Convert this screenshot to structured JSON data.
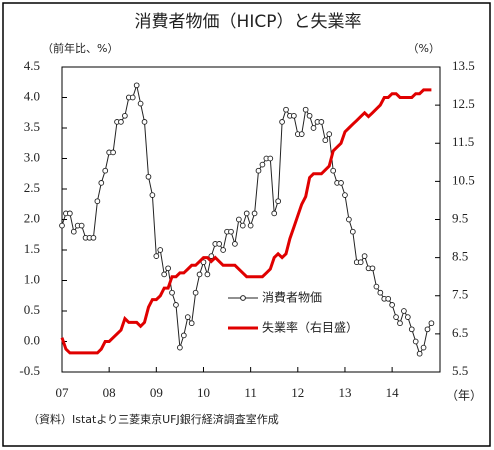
{
  "chart_data": {
    "type": "line",
    "title": "消費者物価（HICP）と失業率",
    "ylabel": "（前年比、%）",
    "y2label": "（%）",
    "xlabel": "（年）",
    "source": "（資料）Istatより三菱東京UFJ銀行経済調査室作成",
    "categories": [
      "07",
      null,
      null,
      null,
      null,
      null,
      null,
      null,
      null,
      null,
      null,
      null,
      "08",
      null,
      null,
      null,
      null,
      null,
      null,
      null,
      null,
      null,
      null,
      null,
      "09",
      null,
      null,
      null,
      null,
      null,
      null,
      null,
      null,
      null,
      null,
      null,
      "10",
      null,
      null,
      null,
      null,
      null,
      null,
      null,
      null,
      null,
      null,
      null,
      "11",
      null,
      null,
      null,
      null,
      null,
      null,
      null,
      null,
      null,
      null,
      null,
      "12",
      null,
      null,
      null,
      null,
      null,
      null,
      null,
      null,
      null,
      null,
      null,
      "13",
      null,
      null,
      null,
      null,
      null,
      null,
      null,
      null,
      null,
      null,
      null,
      "14",
      null,
      null,
      null,
      null,
      null,
      null,
      null,
      null,
      null,
      null
    ],
    "ylim": [
      -0.5,
      4.5
    ],
    "yticks": [
      -0.5,
      {
        "value": 0,
        "label": "0.0"
      },
      0.5,
      {
        "value": 1,
        "label": "1.0"
      },
      1.5,
      {
        "value": 2,
        "label": "2.0"
      },
      2.5,
      {
        "value": 3,
        "label": "3.0"
      },
      3.5,
      {
        "value": 4,
        "label": "4.0"
      },
      4.5
    ],
    "y2lim": [
      5.5,
      13.5
    ],
    "y2ticks": [
      5.5,
      6.5,
      7.5,
      8.5,
      9.5,
      10.5,
      11.5,
      12.5,
      13.5
    ],
    "legend": "center-right",
    "series": [
      {
        "name": "消費者物価",
        "color": "#222222",
        "marker": "circle",
        "values": [
          1.9,
          2.1,
          2.1,
          1.8,
          1.9,
          1.9,
          1.7,
          1.7,
          1.7,
          2.3,
          2.6,
          2.8,
          3.1,
          3.1,
          3.6,
          3.6,
          3.7,
          4.0,
          4.0,
          4.2,
          3.9,
          3.6,
          2.7,
          2.4,
          1.4,
          1.5,
          1.1,
          1.2,
          0.8,
          0.6,
          -0.1,
          0.1,
          0.4,
          0.3,
          0.8,
          1.1,
          1.3,
          1.1,
          1.4,
          1.6,
          1.6,
          1.5,
          1.8,
          1.8,
          1.6,
          2.0,
          1.9,
          2.1,
          1.9,
          2.1,
          2.8,
          2.9,
          3.0,
          3.0,
          2.1,
          2.3,
          3.6,
          3.8,
          3.7,
          3.7,
          3.4,
          3.4,
          3.8,
          3.7,
          3.5,
          3.6,
          3.6,
          3.3,
          3.4,
          2.8,
          2.6,
          2.6,
          2.4,
          2.0,
          1.8,
          1.3,
          1.3,
          1.4,
          1.2,
          1.2,
          0.9,
          0.8,
          0.7,
          0.7,
          0.6,
          0.4,
          0.3,
          0.5,
          0.4,
          0.2,
          0.0,
          -0.2,
          -0.1,
          0.2,
          0.3
        ]
      },
      {
        "name": "失業率（右目盛）",
        "color": "#e00000",
        "axis": "y2",
        "values": [
          6.4,
          6.1,
          6.0,
          6.0,
          6.0,
          6.0,
          6.0,
          6.0,
          6.0,
          6.0,
          6.1,
          6.3,
          6.3,
          6.4,
          6.5,
          6.6,
          6.9,
          6.8,
          6.8,
          6.8,
          6.7,
          6.8,
          7.2,
          7.4,
          7.4,
          7.5,
          7.7,
          7.7,
          8.0,
          8.0,
          8.1,
          8.1,
          8.2,
          8.3,
          8.3,
          8.4,
          8.5,
          8.5,
          8.4,
          8.5,
          8.4,
          8.3,
          8.3,
          8.3,
          8.3,
          8.2,
          8.1,
          8.0,
          8.0,
          8.0,
          8.0,
          8.0,
          8.1,
          8.2,
          8.5,
          8.6,
          8.5,
          8.6,
          9.0,
          9.3,
          9.6,
          9.9,
          10.1,
          10.6,
          10.7,
          10.7,
          10.7,
          10.8,
          10.9,
          11.3,
          11.4,
          11.5,
          11.8,
          11.9,
          12.0,
          12.1,
          12.2,
          12.3,
          12.2,
          12.3,
          12.4,
          12.5,
          12.7,
          12.7,
          12.8,
          12.8,
          12.7,
          12.7,
          12.7,
          12.7,
          12.8,
          12.8,
          12.9,
          12.9,
          12.9
        ]
      }
    ]
  }
}
